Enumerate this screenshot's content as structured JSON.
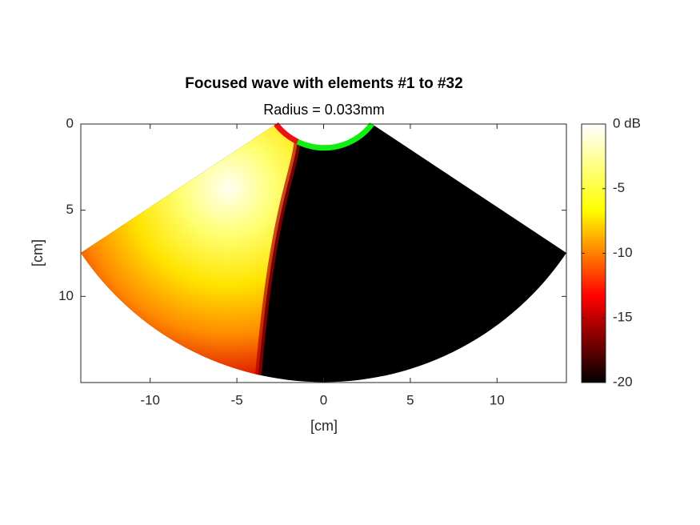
{
  "chart_data": {
    "type": "sector-field",
    "title": "Focused wave with elements #1 to #32",
    "subtitle": "Radius = 0.033mm",
    "xlabel": "[cm]",
    "ylabel": "[cm]",
    "xlim": [
      -14,
      14
    ],
    "xticks": [
      -10,
      -5,
      0,
      5,
      10
    ],
    "ylim": [
      0,
      15
    ],
    "yticks": [
      0,
      5,
      10
    ],
    "y_reversed": true,
    "colormap": [
      "#000000",
      "#ff0000",
      "#ffff00",
      "#ffffff"
    ],
    "clim": [
      -20,
      0
    ],
    "cticks": [
      {
        "value": 0,
        "label": "0 dB"
      },
      -5,
      -10,
      -15,
      -20
    ]
  }
}
